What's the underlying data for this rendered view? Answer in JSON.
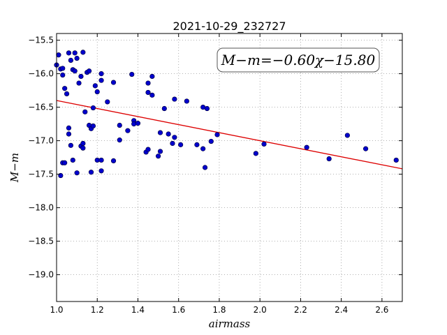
{
  "chart_data": {
    "type": "scatter",
    "title": "2021-10-29_232727",
    "xlabel": "airmass",
    "ylabel": "M−m",
    "xlim": [
      1.0,
      2.7
    ],
    "ylim": [
      -19.4,
      -15.4
    ],
    "xticks": [
      "1.0",
      "1.2",
      "1.4",
      "1.6",
      "1.8",
      "2.0",
      "2.2",
      "2.4",
      "2.6"
    ],
    "yticks": [
      "−15.5",
      "−16.0",
      "−16.5",
      "−17.0",
      "−17.5",
      "−18.0",
      "−18.5",
      "−19.0"
    ],
    "grid": true,
    "annotation": "M−m=−0.60χ−15.80",
    "fit": {
      "slope": -0.6,
      "intercept": -15.8,
      "color": "#dd0000"
    },
    "marker_color": "#0000cc",
    "points": [
      [
        1.0,
        -15.87
      ],
      [
        1.01,
        -15.72
      ],
      [
        1.02,
        -15.93
      ],
      [
        1.03,
        -15.92
      ],
      [
        1.03,
        -16.02
      ],
      [
        1.04,
        -16.22
      ],
      [
        1.05,
        -16.3
      ],
      [
        1.06,
        -15.69
      ],
      [
        1.07,
        -15.8
      ],
      [
        1.08,
        -15.94
      ],
      [
        1.09,
        -15.96
      ],
      [
        1.09,
        -15.69
      ],
      [
        1.1,
        -15.77
      ],
      [
        1.11,
        -16.14
      ],
      [
        1.12,
        -16.04
      ],
      [
        1.13,
        -15.68
      ],
      [
        1.15,
        -15.98
      ],
      [
        1.16,
        -15.96
      ],
      [
        1.18,
        -16.51
      ],
      [
        1.19,
        -16.18
      ],
      [
        1.2,
        -16.27
      ],
      [
        1.22,
        -16.1
      ],
      [
        1.22,
        -16.0
      ],
      [
        1.25,
        -16.42
      ],
      [
        1.28,
        -16.13
      ],
      [
        1.14,
        -16.57
      ],
      [
        1.06,
        -16.81
      ],
      [
        1.06,
        -16.9
      ],
      [
        1.07,
        -17.07
      ],
      [
        1.12,
        -17.08
      ],
      [
        1.13,
        -17.11
      ],
      [
        1.13,
        -17.04
      ],
      [
        1.16,
        -16.77
      ],
      [
        1.17,
        -16.82
      ],
      [
        1.18,
        -16.78
      ],
      [
        1.08,
        -17.29
      ],
      [
        1.03,
        -17.33
      ],
      [
        1.04,
        -17.33
      ],
      [
        1.02,
        -17.52
      ],
      [
        1.1,
        -17.48
      ],
      [
        1.17,
        -17.47
      ],
      [
        1.2,
        -17.29
      ],
      [
        1.22,
        -17.29
      ],
      [
        1.22,
        -17.45
      ],
      [
        1.28,
        -17.3
      ],
      [
        1.31,
        -16.77
      ],
      [
        1.31,
        -16.99
      ],
      [
        1.35,
        -16.85
      ],
      [
        1.37,
        -16.01
      ],
      [
        1.38,
        -16.7
      ],
      [
        1.38,
        -16.75
      ],
      [
        1.4,
        -16.74
      ],
      [
        1.44,
        -17.17
      ],
      [
        1.45,
        -17.13
      ],
      [
        1.45,
        -16.28
      ],
      [
        1.45,
        -16.14
      ],
      [
        1.47,
        -16.32
      ],
      [
        1.47,
        -16.04
      ],
      [
        1.5,
        -17.23
      ],
      [
        1.51,
        -17.16
      ],
      [
        1.51,
        -16.88
      ],
      [
        1.53,
        -16.52
      ],
      [
        1.55,
        -16.9
      ],
      [
        1.57,
        -17.04
      ],
      [
        1.58,
        -16.95
      ],
      [
        1.58,
        -16.38
      ],
      [
        1.61,
        -17.06
      ],
      [
        1.64,
        -16.41
      ],
      [
        1.69,
        -17.06
      ],
      [
        1.72,
        -17.12
      ],
      [
        1.72,
        -16.5
      ],
      [
        1.73,
        -17.4
      ],
      [
        1.74,
        -16.52
      ],
      [
        1.76,
        -17.01
      ],
      [
        1.79,
        -16.91
      ],
      [
        1.98,
        -17.19
      ],
      [
        2.02,
        -17.05
      ],
      [
        2.23,
        -17.1
      ],
      [
        2.34,
        -17.27
      ],
      [
        2.43,
        -16.92
      ],
      [
        2.52,
        -17.12
      ],
      [
        2.67,
        -17.29
      ]
    ]
  }
}
